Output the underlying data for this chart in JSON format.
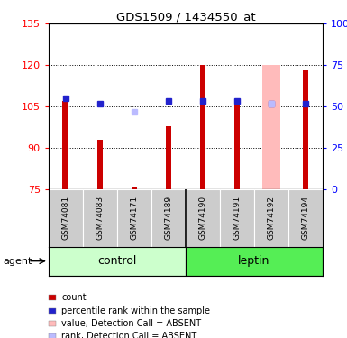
{
  "title": "GDS1509 / 1434550_at",
  "samples": [
    "GSM74081",
    "GSM74083",
    "GSM74171",
    "GSM74189",
    "GSM74190",
    "GSM74191",
    "GSM74192",
    "GSM74194"
  ],
  "groups": [
    "control",
    "control",
    "control",
    "control",
    "leptin",
    "leptin",
    "leptin",
    "leptin"
  ],
  "red_bars": [
    107,
    93,
    75.5,
    98,
    120,
    107,
    75,
    118
  ],
  "blue_squares": [
    108,
    106,
    null,
    107,
    107,
    107,
    106,
    106
  ],
  "pink_bars": [
    null,
    null,
    null,
    null,
    null,
    null,
    120,
    null
  ],
  "lightblue_squares": [
    null,
    null,
    103,
    null,
    null,
    null,
    106,
    null
  ],
  "ylim_left": [
    75,
    135
  ],
  "ylim_right": [
    0,
    100
  ],
  "yticks_left": [
    75,
    90,
    105,
    120,
    135
  ],
  "yticks_right": [
    0,
    25,
    50,
    75,
    100
  ],
  "group_colors_control": "#ccffcc",
  "group_colors_leptin": "#55ee55",
  "red_color": "#cc0000",
  "blue_color": "#2222cc",
  "pink_color": "#ffbbbb",
  "lightblue_color": "#bbbbff",
  "gray_color": "#cccccc",
  "control_label": "control",
  "leptin_label": "leptin",
  "agent_label": "agent",
  "legend_items": [
    {
      "label": "count",
      "color": "#cc0000"
    },
    {
      "label": "percentile rank within the sample",
      "color": "#2222cc"
    },
    {
      "label": "value, Detection Call = ABSENT",
      "color": "#ffbbbb"
    },
    {
      "label": "rank, Detection Call = ABSENT",
      "color": "#bbbbff"
    }
  ]
}
